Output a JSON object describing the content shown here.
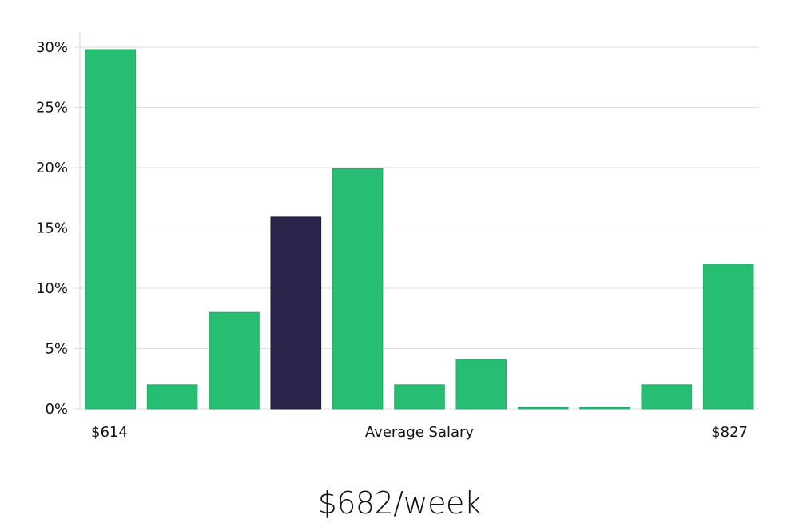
{
  "headline": "$682/week",
  "chart_data": {
    "type": "bar",
    "title": "",
    "xlabel": "Average Salary",
    "ylabel": "",
    "x_start_label": "$614",
    "x_end_label": "$827",
    "y_ticks": [
      "0%",
      "5%",
      "10%",
      "15%",
      "20%",
      "25%",
      "30%"
    ],
    "ylim": [
      0,
      30
    ],
    "y_unit": "%",
    "grid": true,
    "values": [
      29.8,
      2,
      8,
      15.9,
      19.9,
      2,
      4.1,
      0.1,
      0.1,
      2,
      12
    ],
    "highlight_index": 3,
    "colors": {
      "bar": "#27be74",
      "highlight": "#29254a"
    }
  }
}
